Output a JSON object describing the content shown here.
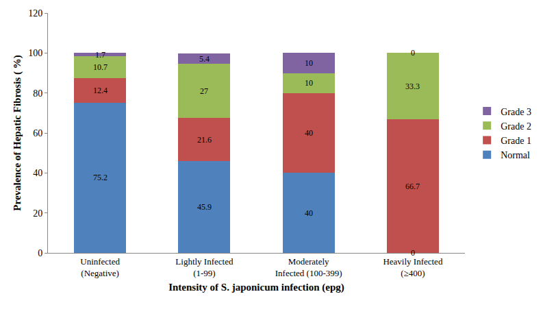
{
  "chart_data": {
    "type": "bar",
    "stacked": true,
    "data_labels": true,
    "grid": false,
    "legend": "right",
    "x_label": "Intensity of S. japonicum infection (epg)",
    "y_label": "Prevalence of Hepatic Fibrosis ( %)",
    "categories": [
      "Uninfected (Negative)",
      "Lightly Infected (1-99)",
      "Moderately Infected (100-399)",
      "Heavily Infected (≥400)"
    ],
    "ylim": [
      0,
      120
    ],
    "yticks": [
      0,
      20,
      40,
      60,
      80,
      100,
      120
    ],
    "series": [
      {
        "name": "Normal",
        "color": "#4f81bd",
        "values": [
          75.2,
          45.9,
          40,
          0
        ]
      },
      {
        "name": "Grade 1",
        "color": "#c0504d",
        "values": [
          12.4,
          21.6,
          40,
          66.7
        ]
      },
      {
        "name": "Grade 2",
        "color": "#9bbb59",
        "values": [
          10.7,
          27,
          10,
          33.3
        ]
      },
      {
        "name": "Grade 3",
        "color": "#8064a2",
        "values": [
          1.7,
          5.4,
          10,
          0
        ]
      }
    ]
  }
}
